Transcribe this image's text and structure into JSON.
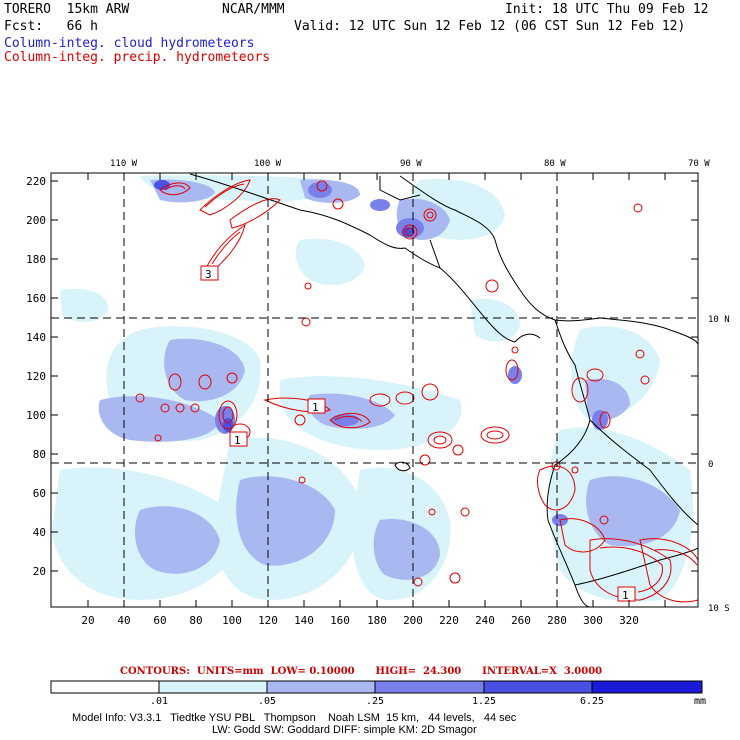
{
  "header": {
    "model": "TORERO  15km ARW",
    "center": "NCAR/MMM",
    "init": "Init: 18 UTC Thu 09 Feb 12",
    "fcst": "Fcst:   66 h",
    "valid": "Valid: 12 UTC Sun 12 Feb 12 (06 CST Sun 12 Feb 12)",
    "field1": "Column-integ. cloud hydrometeors",
    "field2": "Column-integ. precip. hydrometeors"
  },
  "axes": {
    "lon_labels": [
      "110 W",
      "100 W",
      "90 W",
      "80 W",
      "70 W"
    ],
    "lat_labels": [
      "10 N",
      "0",
      "10 S"
    ],
    "y_ticks": [
      "220",
      "200",
      "180",
      "160",
      "140",
      "120",
      "100",
      "80",
      "60",
      "40",
      "20"
    ],
    "x_ticks": [
      "20",
      "40",
      "60",
      "80",
      "100",
      "120",
      "140",
      "160",
      "180",
      "200",
      "220",
      "240",
      "260",
      "280",
      "300",
      "320"
    ]
  },
  "contour_boxes": [
    "3",
    "1",
    "1",
    "1"
  ],
  "contour_info": {
    "text": "CONTOURS:  UNITS=mm  LOW= 0.10000      HIGH=  24.300      INTERVAL=X  3.0000"
  },
  "colorbar": {
    "labels": [
      ".01",
      ".05",
      ".25",
      "1.25",
      "6.25"
    ],
    "unit": "mm",
    "colors": [
      "#ffffff",
      "#d8f4fa",
      "#aab8f2",
      "#7a80ea",
      "#4a50e2",
      "#1a1ad8"
    ]
  },
  "model_info": {
    "line1": "Model Info: V3.3.1   Tiedtke YSU PBL   Thompson    Noah LSM  15 km,   44 levels,   44 sec",
    "line2": "LW: Godd SW: Goddard DIFF: simple KM: 2D Smagor"
  },
  "colors": {
    "cloud_light": "#d8f4fa",
    "cloud_mid": "#aab8f2",
    "cloud_dark": "#7a80ea",
    "cloud_deep": "#4a50e2",
    "precip": "#e00000"
  }
}
